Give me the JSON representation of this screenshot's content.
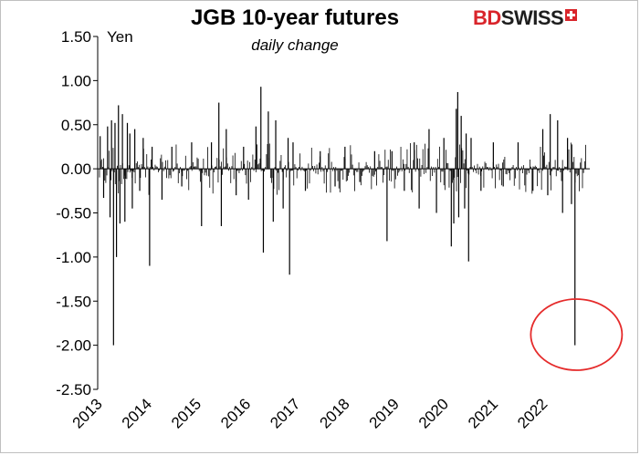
{
  "brand": {
    "logo_part1": "BD",
    "logo_part2": "SWISS",
    "logo_icon": "swiss-cross-icon"
  },
  "colors": {
    "bars": "#000000",
    "annotation_circle": "#e52b2b",
    "axis": "#000000"
  },
  "chart_data": {
    "type": "bar",
    "title": "JGB 10-year futures",
    "subtitle": "daily change",
    "ylabel": "Yen",
    "xlabel": "",
    "ylim": [
      -2.5,
      1.5
    ],
    "yticks": [
      1.5,
      1.0,
      0.5,
      0.0,
      -0.5,
      -1.0,
      -1.5,
      -2.0,
      -2.5
    ],
    "ytick_labels": [
      "1.50",
      "1.00",
      "0.50",
      "0.00",
      "-0.50",
      "-1.00",
      "-1.50",
      "-2.00",
      "-2.50"
    ],
    "xlim": [
      2013.0,
      2022.95
    ],
    "xtick_labels": [
      "2013",
      "2014",
      "2015",
      "2016",
      "2017",
      "2018",
      "2019",
      "2020",
      "2021",
      "2022"
    ],
    "grid": false,
    "legend": "none",
    "series": [
      {
        "values": [
          [
            2013.05,
            0.37
          ],
          [
            2013.12,
            -0.33
          ],
          [
            2013.2,
            0.48
          ],
          [
            2013.25,
            -0.55
          ],
          [
            2013.28,
            0.55
          ],
          [
            2013.32,
            -2.0
          ],
          [
            2013.35,
            0.52
          ],
          [
            2013.38,
            -1.0
          ],
          [
            2013.42,
            0.72
          ],
          [
            2013.45,
            -0.62
          ],
          [
            2013.5,
            0.62
          ],
          [
            2013.55,
            -0.6
          ],
          [
            2013.6,
            0.52
          ],
          [
            2013.65,
            0.4
          ],
          [
            2013.7,
            -0.45
          ],
          [
            2013.75,
            0.45
          ],
          [
            2013.85,
            -0.25
          ],
          [
            2013.92,
            0.35
          ],
          [
            2014.05,
            -1.1
          ],
          [
            2014.1,
            0.25
          ],
          [
            2014.3,
            -0.35
          ],
          [
            2014.5,
            0.25
          ],
          [
            2014.7,
            -0.2
          ],
          [
            2014.9,
            0.3
          ],
          [
            2015.1,
            -0.65
          ],
          [
            2015.3,
            0.3
          ],
          [
            2015.45,
            0.75
          ],
          [
            2015.5,
            -0.65
          ],
          [
            2015.6,
            0.45
          ],
          [
            2015.8,
            -0.3
          ],
          [
            2015.95,
            0.25
          ],
          [
            2016.05,
            -0.35
          ],
          [
            2016.2,
            0.48
          ],
          [
            2016.3,
            0.93
          ],
          [
            2016.35,
            -0.95
          ],
          [
            2016.45,
            0.65
          ],
          [
            2016.55,
            -0.6
          ],
          [
            2016.6,
            0.55
          ],
          [
            2016.75,
            -0.45
          ],
          [
            2016.85,
            0.35
          ],
          [
            2016.88,
            -1.2
          ],
          [
            2016.95,
            0.3
          ],
          [
            2017.2,
            -0.25
          ],
          [
            2017.5,
            0.2
          ],
          [
            2017.8,
            -0.2
          ],
          [
            2018.0,
            0.25
          ],
          [
            2018.3,
            -0.15
          ],
          [
            2018.6,
            0.2
          ],
          [
            2018.85,
            -0.82
          ],
          [
            2018.95,
            0.2
          ],
          [
            2019.2,
            -0.25
          ],
          [
            2019.4,
            0.3
          ],
          [
            2019.5,
            -0.45
          ],
          [
            2019.7,
            0.45
          ],
          [
            2019.85,
            -0.5
          ],
          [
            2020.0,
            0.35
          ],
          [
            2020.15,
            -0.88
          ],
          [
            2020.2,
            -0.62
          ],
          [
            2020.25,
            0.68
          ],
          [
            2020.28,
            0.87
          ],
          [
            2020.3,
            -0.55
          ],
          [
            2020.35,
            0.6
          ],
          [
            2020.42,
            -0.45
          ],
          [
            2020.45,
            0.4
          ],
          [
            2020.5,
            -1.05
          ],
          [
            2020.55,
            0.35
          ],
          [
            2020.75,
            -0.25
          ],
          [
            2021.0,
            0.3
          ],
          [
            2021.2,
            -0.2
          ],
          [
            2021.5,
            0.3
          ],
          [
            2021.8,
            -0.25
          ],
          [
            2022.0,
            0.45
          ],
          [
            2022.1,
            -0.3
          ],
          [
            2022.15,
            0.62
          ],
          [
            2022.3,
            0.55
          ],
          [
            2022.4,
            -0.5
          ],
          [
            2022.5,
            0.35
          ],
          [
            2022.58,
            -0.4
          ],
          [
            2022.65,
            -2.0
          ]
        ]
      }
    ],
    "annotation": {
      "type": "circle",
      "center": [
        2022.68,
        -1.88
      ],
      "color": "#e52b2b"
    }
  }
}
